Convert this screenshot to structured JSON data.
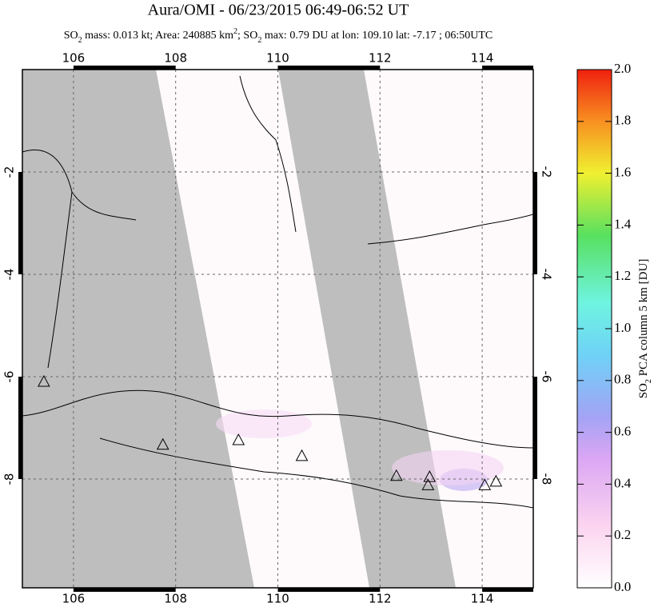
{
  "chart_data": {
    "type": "map",
    "title": "Aura/OMI - 06/23/2015 06:49-06:52 UT",
    "subtitle_parts": [
      "SO",
      "2",
      " mass: 0.013 kt; Area: 240885 km",
      "2",
      "; SO",
      "2",
      " max: 0.79 DU at lon: 109.10 lat: -7.17 ; 06:50UTC"
    ],
    "xlim": [
      105,
      115
    ],
    "ylim": [
      -10.125,
      0
    ],
    "xticks": [
      106,
      108,
      110,
      112,
      114
    ],
    "yticks": [
      -2,
      -4,
      -6,
      -8
    ],
    "grid": true,
    "volcanoes": {
      "lon": [
        105.42,
        107.75,
        109.23,
        110.47,
        112.32,
        112.97,
        112.94,
        114.05,
        114.27
      ],
      "lat": [
        -6.11,
        -7.34,
        -7.25,
        -7.56,
        -7.95,
        -7.97,
        -8.13,
        -8.13,
        -8.06
      ]
    },
    "colorbar": {
      "label_parts": [
        "SO",
        "2",
        " PCA column 5 km [DU]"
      ],
      "lim": [
        0,
        2
      ],
      "ticks": [
        {
          "value": 0,
          "label": "0.0"
        },
        0.2,
        0.4,
        0.6,
        0.8,
        {
          "value": 1,
          "label": "1.0"
        },
        1.2,
        1.4,
        1.6,
        1.8,
        {
          "value": 2,
          "label": "2.0"
        }
      ]
    }
  }
}
